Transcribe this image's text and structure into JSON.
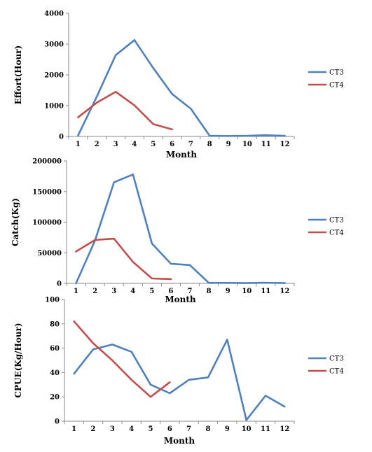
{
  "chart_data": [
    {
      "type": "line",
      "title": "",
      "xlabel": "Month",
      "ylabel": "Effort(Hour)",
      "categories": [
        "1",
        "2",
        "3",
        "4",
        "5",
        "6",
        "7",
        "8",
        "9",
        "10",
        "11",
        "12"
      ],
      "ylim": [
        0,
        4000
      ],
      "yticks": [
        "0",
        "1000",
        "2000",
        "3000",
        "4000"
      ],
      "grid": false,
      "legend": "right",
      "series": [
        {
          "name": "CT3",
          "color": "#4f81bd",
          "values": [
            30,
            1300,
            2640,
            3130,
            2220,
            1380,
            900,
            20,
            15,
            20,
            40,
            20
          ]
        },
        {
          "name": "CT4",
          "color": "#c0504d",
          "values": [
            620,
            1100,
            1450,
            1010,
            400,
            230,
            null,
            null,
            null,
            null,
            null,
            null
          ]
        }
      ]
    },
    {
      "type": "line",
      "title": "",
      "xlabel": "Month",
      "ylabel": "Catch(Kg)",
      "categories": [
        "1",
        "2",
        "3",
        "4",
        "5",
        "6",
        "7",
        "8",
        "9",
        "10",
        "11",
        "12"
      ],
      "ylim": [
        0,
        200000
      ],
      "yticks": [
        "0",
        "50000",
        "100000",
        "150000",
        "200000"
      ],
      "grid": false,
      "legend": "right",
      "series": [
        {
          "name": "CT3",
          "color": "#4f81bd",
          "values": [
            0,
            70000,
            165000,
            178000,
            65000,
            32000,
            30000,
            800,
            800,
            500,
            1000,
            500
          ]
        },
        {
          "name": "CT4",
          "color": "#c0504d",
          "values": [
            52000,
            71000,
            73000,
            35000,
            8000,
            7000,
            null,
            null,
            null,
            null,
            null,
            null
          ]
        }
      ]
    },
    {
      "type": "line",
      "title": "",
      "xlabel": "Month",
      "ylabel": "CPUE(Kg/Hour)",
      "categories": [
        "1",
        "2",
        "3",
        "4",
        "5",
        "6",
        "7",
        "8",
        "9",
        "10",
        "11",
        "12"
      ],
      "ylim": [
        0,
        100
      ],
      "yticks": [
        "0",
        "20",
        "40",
        "60",
        "80",
        "100"
      ],
      "grid": false,
      "legend": "right",
      "series": [
        {
          "name": "CT3",
          "color": "#4f81bd",
          "values": [
            39,
            59,
            63,
            57,
            30,
            23,
            34,
            36,
            67,
            1,
            21,
            12
          ]
        },
        {
          "name": "CT4",
          "color": "#c0504d",
          "values": [
            82,
            64,
            50,
            34,
            20,
            32,
            null,
            null,
            null,
            null,
            null,
            null
          ]
        }
      ]
    }
  ]
}
